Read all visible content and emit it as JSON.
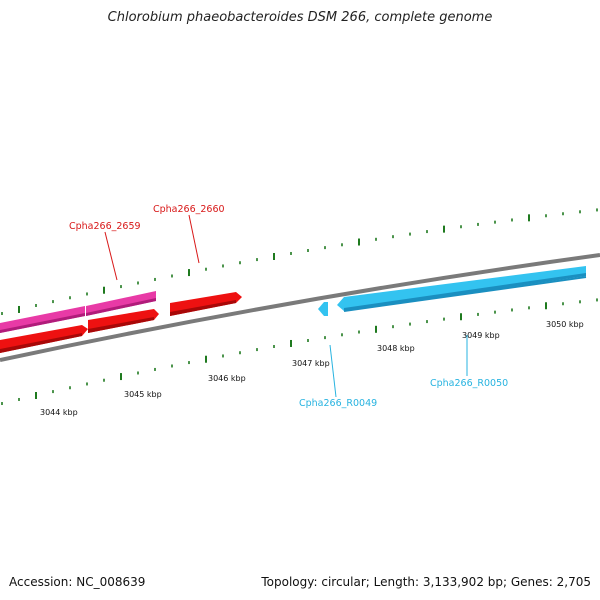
{
  "title": "Chlorobium phaeobacteroides DSM 266, complete genome",
  "accession": "Accession: NC_008639",
  "summary": "Topology: circular; Length: 3,133,902 bp; Genes: 2,705",
  "colors": {
    "backbone": "#7a7a7a",
    "tick": "#1f7a1f",
    "cds": "#ee1111",
    "pink": "#e83aa6",
    "rna": "#33c3f0",
    "label_red": "#d81818",
    "label_cyan": "#27b3e0"
  },
  "scale_labels": [
    "3044 kbp",
    "3045 kbp",
    "3046 kbp",
    "3047 kbp",
    "3048 kbp",
    "3049 kbp",
    "3050 kbp"
  ],
  "gene_labels": [
    "Cpha266_2659",
    "Cpha266_2660",
    "Cpha266_R0049",
    "Cpha266_R0050"
  ]
}
